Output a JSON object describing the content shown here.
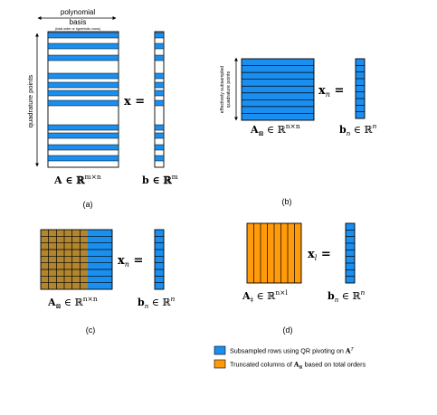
{
  "colors": {
    "blue": "#1a8ff0",
    "orange": "#ff9a0a",
    "brown": "#b2852f",
    "stroke": "#000000"
  },
  "panel_a": {
    "header_line1": "polynomial",
    "header_line2": "basis",
    "header_note": "(total order or hyperbolic cross)",
    "side_label": "quadrature points",
    "matrix_label": "A ∈ ℝ",
    "matrix_sup": "m×n",
    "vector_x": "x =",
    "vector_label": "b ∈ ℝ",
    "vector_sup": "m",
    "caption": "(a)"
  },
  "panel_b": {
    "side_label_1": "effectively subsampled",
    "side_label_2": "quadrature points",
    "matrix_label": "A",
    "matrix_sub": "⊠",
    "matrix_tail": " ∈ ℝ",
    "matrix_sup": "n×n",
    "vector_x": "x",
    "vector_sub": "n",
    "vector_eq": " =",
    "vector_label": "b",
    "vector_label_sub": "n",
    "vector_tail": " ∈ ℝ",
    "vector_sup": "n",
    "caption": "(b)"
  },
  "panel_c": {
    "matrix_label": "A",
    "matrix_sub": "⊠",
    "matrix_tail": " ∈ ℝ",
    "matrix_sup": "n×n",
    "vector_x": "x",
    "vector_sub": "n",
    "vector_eq": " =",
    "vector_label": "b",
    "vector_label_sub": "n",
    "vector_tail": " ∈ ℝ",
    "vector_sup": "n",
    "caption": "(c)"
  },
  "panel_d": {
    "matrix_label": "A",
    "matrix_sub": "‡",
    "matrix_tail": " ∈ ℝ",
    "matrix_sup": "n×l",
    "vector_x": "x",
    "vector_sub": "l",
    "vector_eq": " =",
    "vector_label": "b",
    "vector_label_sub": "n",
    "vector_tail": " ∈ ℝ",
    "vector_sup": "n",
    "caption": "(d)"
  },
  "legend": {
    "item1_text": "Subsampled rows using QR pivoting on ",
    "item1_math": "A",
    "item1_sup": "T",
    "item2_text": "Truncated columns of ",
    "item2_math": "A",
    "item2_sub": "⊠",
    "item2_tail": " based on total orders"
  }
}
